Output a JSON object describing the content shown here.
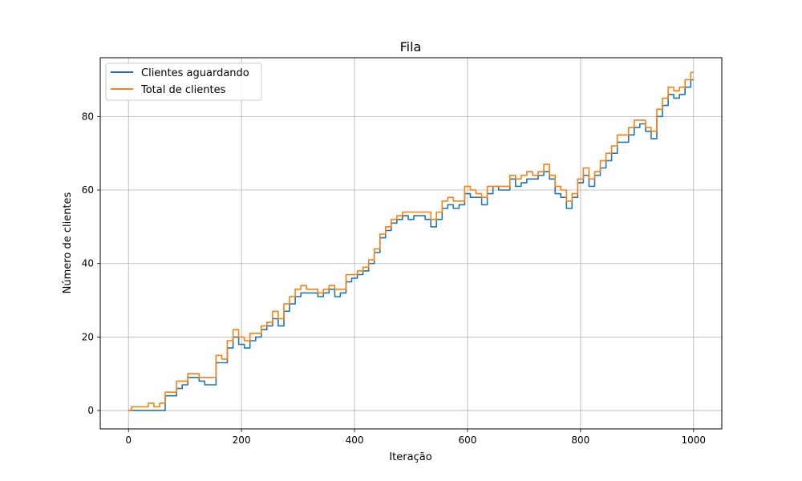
{
  "chart_data": {
    "type": "line",
    "title": "Fila",
    "xlabel": "Iteração",
    "ylabel": "Número de clientes",
    "xlim": [
      -50,
      1050
    ],
    "ylim": [
      -5,
      96
    ],
    "grid": true,
    "legend_position": "top-left",
    "x_ticks": [
      0,
      200,
      400,
      600,
      800,
      1000
    ],
    "y_ticks": [
      0,
      20,
      40,
      60,
      80
    ],
    "x_tick_labels": [
      "0",
      "200",
      "400",
      "600",
      "800",
      "1000"
    ],
    "y_tick_labels": [
      "0",
      "20",
      "40",
      "60",
      "80"
    ],
    "series": [
      {
        "name": "Clientes aguardando",
        "color": "#1f77b4",
        "x": [
          0,
          10,
          20,
          30,
          40,
          50,
          60,
          70,
          80,
          90,
          100,
          110,
          120,
          130,
          140,
          150,
          160,
          170,
          180,
          190,
          200,
          210,
          220,
          230,
          240,
          250,
          260,
          270,
          280,
          290,
          300,
          310,
          320,
          330,
          340,
          350,
          360,
          370,
          380,
          390,
          400,
          410,
          420,
          430,
          440,
          450,
          460,
          470,
          480,
          490,
          500,
          510,
          520,
          530,
          540,
          550,
          560,
          570,
          580,
          590,
          600,
          610,
          620,
          630,
          640,
          650,
          660,
          670,
          680,
          690,
          700,
          710,
          720,
          730,
          740,
          750,
          760,
          770,
          780,
          790,
          800,
          810,
          820,
          830,
          840,
          850,
          860,
          870,
          880,
          890,
          900,
          910,
          920,
          930,
          940,
          950,
          960,
          970,
          980,
          990,
          1000
        ],
        "values": [
          0,
          0,
          0,
          0,
          0,
          0,
          0,
          4,
          4,
          6,
          7,
          9,
          9,
          8,
          7,
          7,
          13,
          13,
          17,
          20,
          18,
          17,
          19,
          20,
          22,
          23,
          25,
          23,
          27,
          29,
          31,
          32,
          32,
          32,
          31,
          32,
          33,
          31,
          32,
          35,
          36,
          37,
          38,
          40,
          43,
          47,
          49,
          51,
          52,
          53,
          52,
          53,
          53,
          52,
          50,
          52,
          55,
          56,
          55,
          56,
          59,
          58,
          58,
          56,
          59,
          61,
          60,
          60,
          63,
          61,
          62,
          63,
          63,
          64,
          65,
          63,
          59,
          58,
          55,
          58,
          62,
          64,
          61,
          64,
          66,
          68,
          70,
          73,
          73,
          75,
          77,
          78,
          76,
          74,
          80,
          83,
          86,
          85,
          86,
          88,
          90
        ]
      },
      {
        "name": "Total de clientes",
        "color": "#ff7f0e",
        "x": [
          0,
          10,
          20,
          30,
          40,
          50,
          60,
          70,
          80,
          90,
          100,
          110,
          120,
          130,
          140,
          150,
          160,
          170,
          180,
          190,
          200,
          210,
          220,
          230,
          240,
          250,
          260,
          270,
          280,
          290,
          300,
          310,
          320,
          330,
          340,
          350,
          360,
          370,
          380,
          390,
          400,
          410,
          420,
          430,
          440,
          450,
          460,
          470,
          480,
          490,
          500,
          510,
          520,
          530,
          540,
          550,
          560,
          570,
          580,
          590,
          600,
          610,
          620,
          630,
          640,
          650,
          660,
          670,
          680,
          690,
          700,
          710,
          720,
          730,
          740,
          750,
          760,
          770,
          780,
          790,
          800,
          810,
          820,
          830,
          840,
          850,
          860,
          870,
          880,
          890,
          900,
          910,
          920,
          930,
          940,
          950,
          960,
          970,
          980,
          990,
          1000
        ],
        "values": [
          0,
          1,
          1,
          1,
          2,
          1,
          2,
          5,
          5,
          8,
          8,
          10,
          10,
          9,
          9,
          9,
          15,
          14,
          19,
          22,
          20,
          19,
          21,
          21,
          23,
          24,
          27,
          25,
          29,
          31,
          33,
          34,
          33,
          33,
          32,
          33,
          34,
          33,
          33,
          37,
          37,
          38,
          39,
          41,
          44,
          48,
          50,
          52,
          53,
          54,
          54,
          54,
          54,
          54,
          52,
          54,
          57,
          58,
          57,
          57,
          61,
          60,
          59,
          58,
          61,
          61,
          61,
          61,
          64,
          63,
          64,
          65,
          64,
          65,
          67,
          64,
          61,
          60,
          57,
          59,
          63,
          66,
          63,
          65,
          68,
          70,
          72,
          75,
          75,
          77,
          79,
          79,
          77,
          76,
          82,
          85,
          88,
          87,
          88,
          90,
          92
        ]
      }
    ]
  }
}
